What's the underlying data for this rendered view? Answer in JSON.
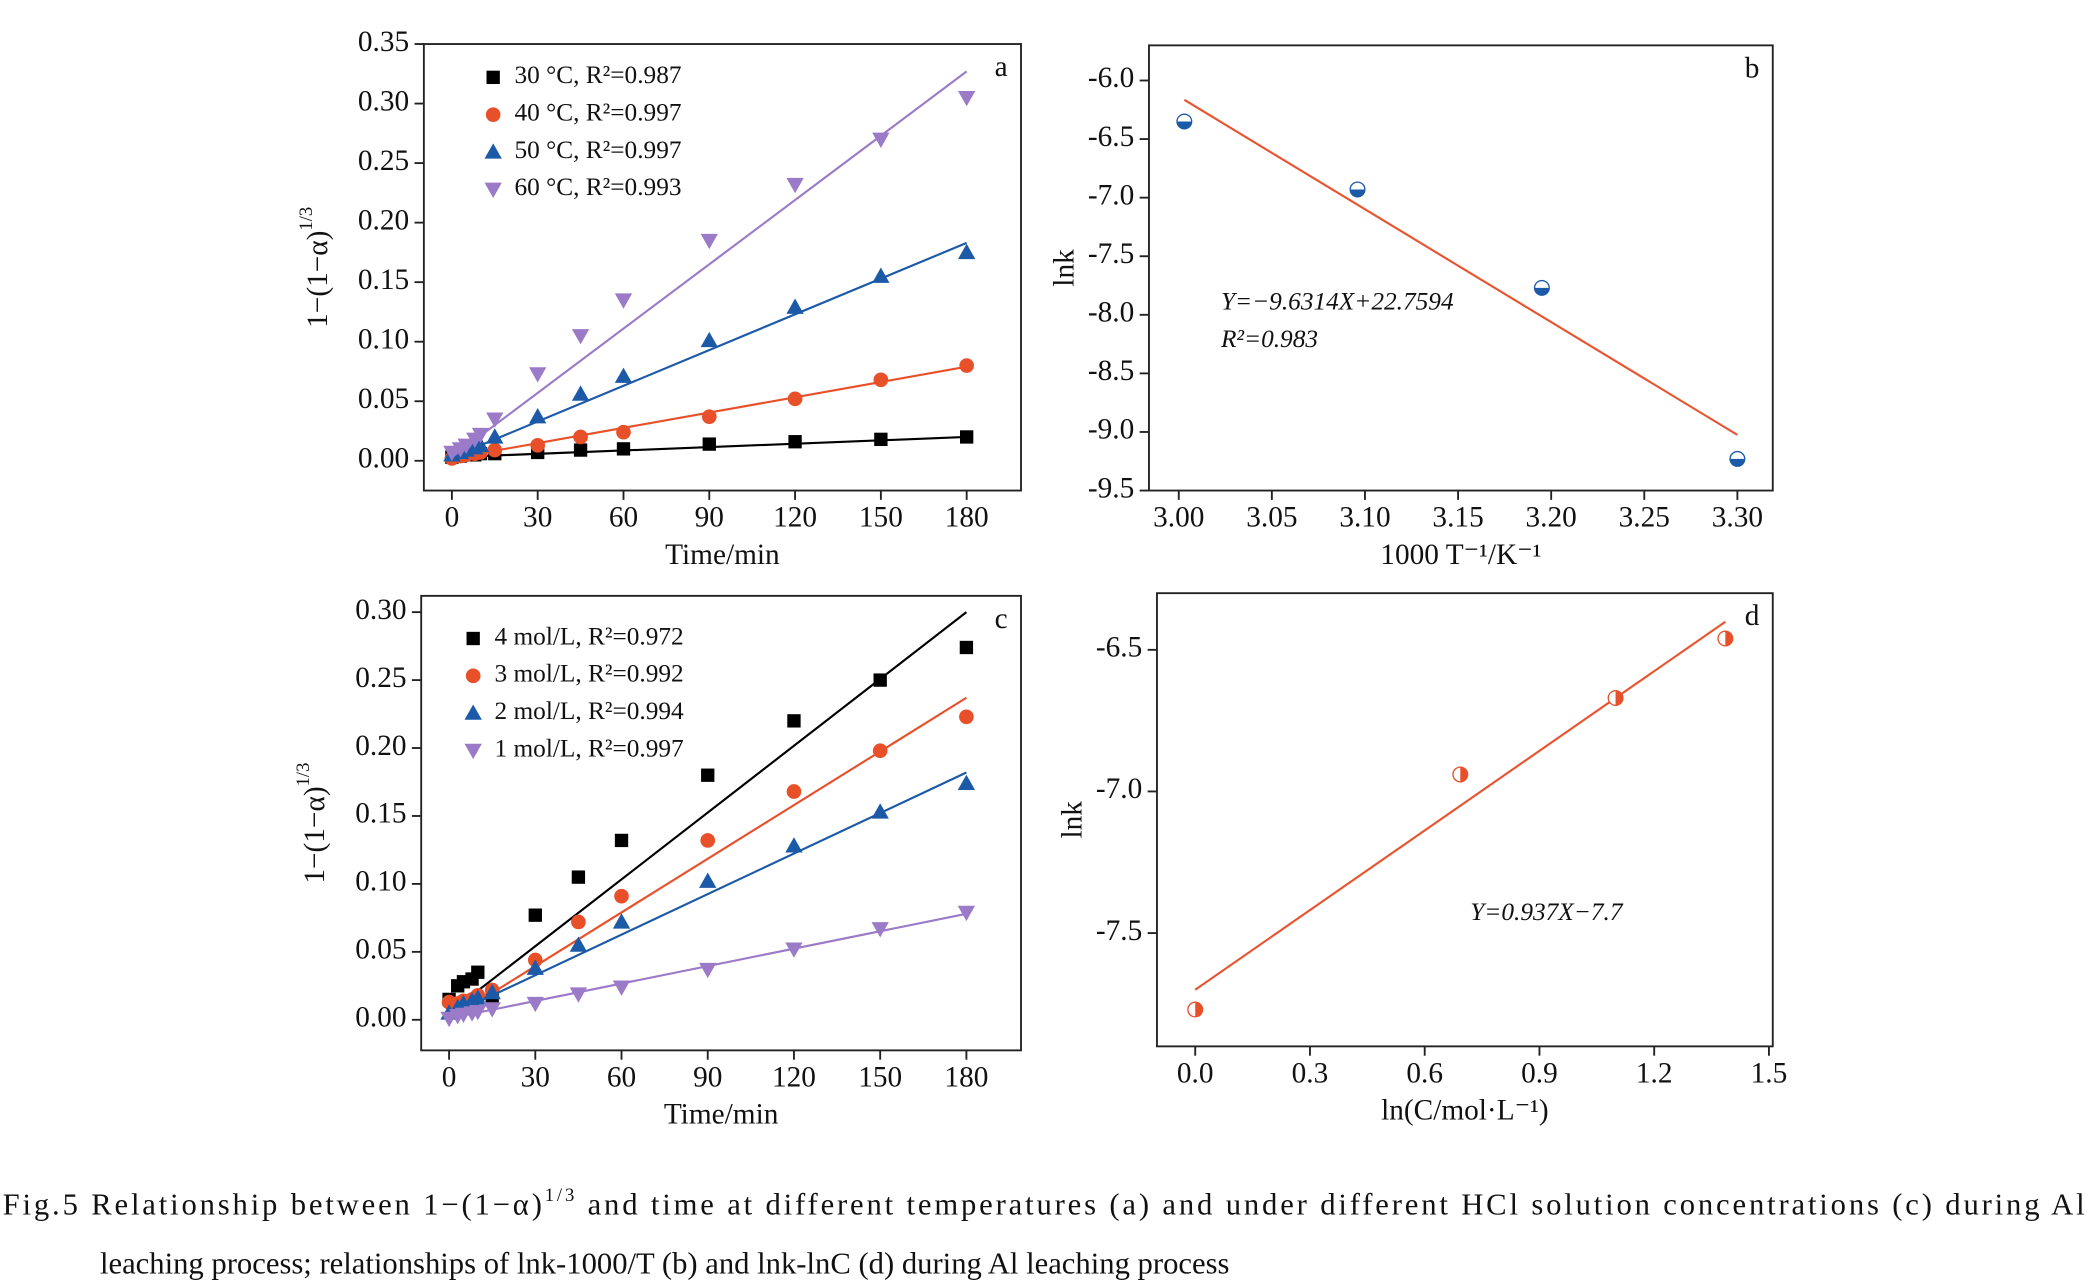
{
  "chart_data": [
    {
      "type": "scatter",
      "panel_label": "a",
      "xlabel": "Time/min",
      "ylabel": "1−(1−α)",
      "ylabel_sup": "1/3",
      "x": [
        0,
        3,
        5,
        8,
        10,
        15,
        30,
        45,
        60,
        90,
        120,
        150,
        180
      ],
      "fit_x": [
        0,
        180
      ],
      "xlim": [
        -9.8,
        199
      ],
      "ylim": [
        -0.025,
        0.35
      ],
      "xticks": [
        0,
        30,
        60,
        90,
        120,
        150,
        180
      ],
      "yticks": [
        {
          "value": 0,
          "label": "0.00"
        },
        0.05,
        {
          "value": 0.1,
          "label": "0.10"
        },
        0.15,
        {
          "value": 0.2,
          "label": "0.20"
        },
        0.25,
        {
          "value": 0.3,
          "label": "0.30"
        },
        0.35
      ],
      "series": [
        {
          "name": "30 °C, R²=0.987",
          "color": "#000000",
          "marker": "square",
          "values": [
            0.003,
            0.004,
            0.005,
            0.005,
            0.006,
            0.006,
            0.007,
            0.009,
            0.01,
            0.014,
            0.016,
            0.018,
            0.02
          ],
          "fit": [
            0.003,
            0.02
          ]
        },
        {
          "name": "40 °C, R²=0.997",
          "color": "#e8502a",
          "marker": "circle",
          "values": [
            0.002,
            0.004,
            0.005,
            0.006,
            0.007,
            0.009,
            0.013,
            0.02,
            0.024,
            0.037,
            0.052,
            0.068,
            0.08
          ],
          "fit": [
            0.002,
            0.079
          ]
        },
        {
          "name": "50 °C, R²=0.997",
          "color": "#1c5aa8",
          "marker": "tri-up",
          "values": [
            0.005,
            0.007,
            0.009,
            0.011,
            0.013,
            0.02,
            0.037,
            0.056,
            0.071,
            0.101,
            0.129,
            0.155,
            0.175
          ],
          "fit": [
            0.003,
            0.183
          ]
        },
        {
          "name": "60 °C, R²=0.993",
          "color": "#9b7ac8",
          "marker": "tri-down",
          "values": [
            0.007,
            0.01,
            0.013,
            0.018,
            0.022,
            0.035,
            0.073,
            0.105,
            0.135,
            0.185,
            0.232,
            0.27,
            0.305
          ],
          "fit": [
            0.003,
            0.327
          ]
        }
      ]
    },
    {
      "type": "scatter",
      "panel_label": "b",
      "xlabel": "1000 T⁻¹/K⁻¹",
      "ylabel": "lnk",
      "annotations": [
        "Y=−9.6314X+22.7594",
        "R²=0.983"
      ],
      "x": [
        3.003,
        3.096,
        3.195,
        3.3
      ],
      "fit_x": [
        3.003,
        3.3
      ],
      "xlim": [
        2.984,
        3.319
      ],
      "ylim": [
        -9.5,
        -5.7
      ],
      "xticks": [
        {
          "value": 3,
          "label": "3.00"
        },
        3.05,
        {
          "value": 3.1,
          "label": "3.10"
        },
        3.15,
        {
          "value": 3.2,
          "label": "3.20"
        },
        3.25,
        {
          "value": 3.3,
          "label": "3.30"
        }
      ],
      "yticks": [
        {
          "value": -6,
          "label": "-6.0"
        },
        -6.5,
        {
          "value": -7,
          "label": "-7.0"
        },
        -7.5,
        {
          "value": -8,
          "label": "-8.0"
        },
        -8.5,
        {
          "value": -9,
          "label": "-9.0"
        },
        -9.5
      ],
      "series": [
        {
          "color": "#1c5aa8",
          "fit_color": "#e8542f",
          "marker": "half-bottom",
          "values": [
            -6.35,
            -6.93,
            -7.77,
            -9.23
          ],
          "fit": [
            -6.165,
            -9.025
          ]
        }
      ]
    },
    {
      "type": "scatter",
      "panel_label": "c",
      "xlabel": "Time/min",
      "ylabel": "1−(1−α)",
      "ylabel_sup": "1/3",
      "x": [
        0,
        3,
        5,
        8,
        10,
        15,
        30,
        45,
        60,
        90,
        120,
        150,
        180
      ],
      "fit_x": [
        0,
        180
      ],
      "xlim": [
        -9.7,
        199
      ],
      "ylim": [
        -0.0225,
        0.312
      ],
      "xticks": [
        0,
        30,
        60,
        90,
        120,
        150,
        180
      ],
      "yticks": [
        {
          "value": 0,
          "label": "0.00"
        },
        0.05,
        {
          "value": 0.1,
          "label": "0.10"
        },
        0.15,
        {
          "value": 0.2,
          "label": "0.20"
        },
        0.25,
        {
          "value": 0.3,
          "label": "0.30"
        }
      ],
      "series": [
        {
          "name": "4 mol/L, R²=0.972",
          "color": "#000000",
          "marker": "square",
          "values": [
            0.015,
            0.025,
            0.028,
            0.03,
            0.035,
            0.017,
            0.077,
            0.105,
            0.132,
            0.18,
            0.22,
            0.25,
            0.274
          ],
          "fit": [
            0.005,
            0.3
          ]
        },
        {
          "name": "3 mol/L, R²=0.992",
          "color": "#e8502a",
          "marker": "circle",
          "values": [
            0.013,
            0.012,
            0.014,
            0.015,
            0.018,
            0.022,
            0.044,
            0.072,
            0.091,
            0.132,
            0.168,
            0.198,
            0.223
          ],
          "fit": [
            0.0,
            0.237
          ]
        },
        {
          "name": "2 mol/L, R²=0.994",
          "color": "#1c5aa8",
          "marker": "tri-up",
          "values": [
            0.005,
            0.009,
            0.012,
            0.014,
            0.016,
            0.02,
            0.038,
            0.055,
            0.072,
            0.102,
            0.128,
            0.153,
            0.174
          ],
          "fit": [
            0.003,
            0.182
          ]
        },
        {
          "name": "1 mol/L, R²=0.997",
          "color": "#9b7ac8",
          "marker": "tri-down",
          "values": [
            0.001,
            0.003,
            0.004,
            0.005,
            0.006,
            0.008,
            0.012,
            0.019,
            0.024,
            0.037,
            0.052,
            0.067,
            0.079
          ],
          "fit": [
            0.001,
            0.078
          ]
        }
      ]
    },
    {
      "type": "scatter",
      "panel_label": "d",
      "xlabel": "ln(C/mol·L⁻¹)",
      "ylabel": "lnk",
      "annotations": [
        "Y=0.937X−7.7"
      ],
      "x": [
        0,
        0.693,
        1.099,
        1.386
      ],
      "fit_x": [
        0,
        1.386
      ],
      "xlim": [
        -0.1,
        1.51
      ],
      "ylim": [
        -7.9,
        -6.3
      ],
      "xticks": [
        {
          "value": 0,
          "label": "0.0"
        },
        0.3,
        0.6,
        0.9,
        1.2,
        {
          "value": 1.5,
          "label": "1.5"
        }
      ],
      "yticks": [
        -6.5,
        {
          "value": -7,
          "label": "-7.0"
        },
        -7.5
      ],
      "series": [
        {
          "color": "#e8502a",
          "fit_color": "#e8542f",
          "marker": "half-right",
          "values": [
            -7.77,
            -6.94,
            -6.67,
            -6.46
          ],
          "fit": [
            -7.7,
            -6.401
          ]
        }
      ]
    }
  ],
  "caption": {
    "line1_a": "Fig.5  Relationship between 1−(1−α)",
    "line1_sup": "1/3",
    "line1_b": " and time at different temperatures (a) and under different HCl solution concentrations (c) during Al",
    "line2": "leaching process; relationships of lnk-1000/T (b) and lnk-lnC (d) during Al leaching process"
  }
}
